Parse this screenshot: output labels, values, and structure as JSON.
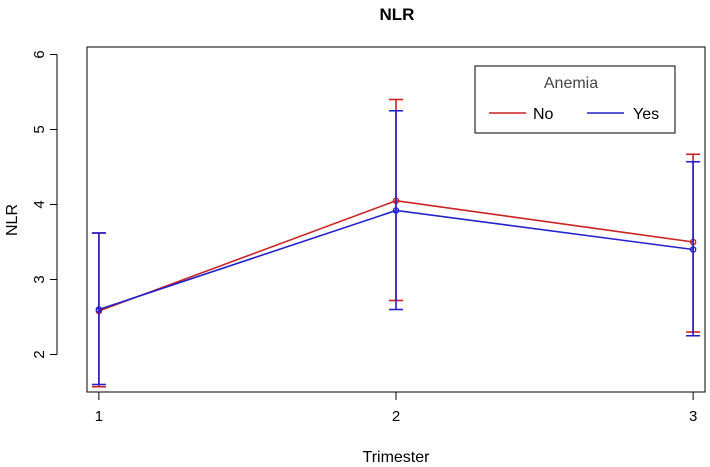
{
  "chart_data": {
    "type": "line",
    "title": "NLR",
    "xlabel": "Trimester",
    "ylabel": "NLR",
    "x": [
      1,
      2,
      3
    ],
    "xlim": [
      0.96,
      3.04
    ],
    "ylim": [
      1.5,
      6.1
    ],
    "xticks": [
      1,
      2,
      3
    ],
    "yticks": [
      2,
      3,
      4,
      5,
      6
    ],
    "grid": false,
    "legend": {
      "title": "Anemia",
      "position": "top-right",
      "title_color": "#444444"
    },
    "series": [
      {
        "name": "No",
        "color": "#cc2222",
        "values": [
          2.58,
          4.05,
          3.5
        ],
        "lower": [
          1.57,
          2.72,
          2.3
        ],
        "upper": [
          3.62,
          5.4,
          4.67
        ]
      },
      {
        "name": "Yes",
        "color": "#2222cc",
        "values": [
          2.6,
          3.92,
          3.4
        ],
        "lower": [
          1.6,
          2.6,
          2.25
        ],
        "upper": [
          3.62,
          5.25,
          4.57
        ]
      }
    ]
  }
}
